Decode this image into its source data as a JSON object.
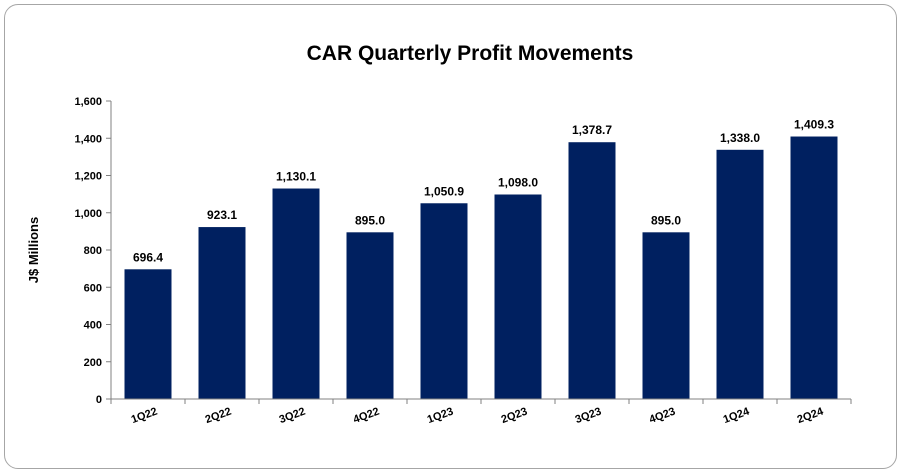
{
  "chart_data": {
    "type": "bar",
    "title": "CAR Quarterly Profit Movements",
    "xlabel": "",
    "ylabel": "J$ Millions",
    "categories": [
      "1Q22",
      "2Q22",
      "3Q22",
      "4Q22",
      "1Q23",
      "2Q23",
      "3Q23",
      "4Q23",
      "1Q24",
      "2Q24"
    ],
    "values": [
      696.4,
      923.1,
      1130.1,
      895.0,
      1050.9,
      1098.0,
      1378.7,
      895.0,
      1338.0,
      1409.3
    ],
    "data_labels": [
      "696.4",
      "923.1",
      "1,130.1",
      "895.0",
      "1,050.9",
      "1,098.0",
      "1,378.7",
      "895.0",
      "1,338.0",
      "1,409.3"
    ],
    "ylim": [
      0,
      1600
    ],
    "yticks": [
      0,
      200,
      400,
      600,
      800,
      1000,
      1200,
      1400,
      1600
    ],
    "ytick_labels": [
      "0",
      "200",
      "400",
      "600",
      "800",
      "1,000",
      "1,200",
      "1,400",
      "1,600"
    ],
    "bar_color": "#002060",
    "grid": false,
    "legend": "none"
  }
}
